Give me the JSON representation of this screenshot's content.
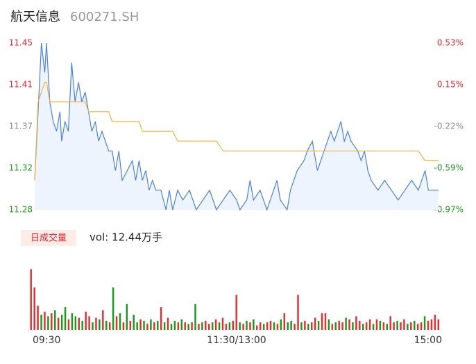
{
  "chart_data": [
    {
      "type": "line",
      "title": "航天信息",
      "subtitle": "600271.SH",
      "xlim": [
        0,
        240
      ],
      "x": [
        0,
        2,
        4,
        6,
        7,
        9,
        11,
        13,
        15,
        16,
        18,
        20,
        22,
        24,
        26,
        28,
        30,
        32,
        34,
        36,
        38,
        40,
        42,
        44,
        46,
        48,
        50,
        52,
        55,
        58,
        60,
        62,
        64,
        66,
        68,
        70,
        72,
        75,
        78,
        80,
        82,
        85,
        88,
        92,
        96,
        100,
        104,
        108,
        112,
        116,
        120,
        122,
        126,
        128,
        130,
        134,
        138,
        140,
        144,
        146,
        150,
        152,
        156,
        160,
        162,
        165,
        168,
        172,
        176,
        178,
        180,
        182,
        184,
        186,
        188,
        192,
        194,
        196,
        198,
        200,
        204,
        208,
        212,
        216,
        220,
        224,
        228,
        232,
        234,
        236,
        240
      ],
      "series": [
        {
          "color": "#4a80e8",
          "fill": "#eef4fd",
          "values": [
            11.31,
            11.38,
            11.45,
            11.42,
            11.45,
            11.39,
            11.37,
            11.36,
            11.38,
            11.35,
            11.37,
            11.36,
            11.43,
            11.39,
            11.41,
            11.39,
            11.4,
            11.38,
            11.36,
            11.37,
            11.35,
            11.36,
            11.35,
            11.34,
            11.34,
            11.32,
            11.34,
            11.31,
            11.32,
            11.33,
            11.31,
            11.33,
            11.31,
            11.32,
            11.3,
            11.31,
            11.3,
            11.3,
            11.28,
            11.3,
            11.28,
            11.3,
            11.29,
            11.3,
            11.28,
            11.29,
            11.3,
            11.28,
            11.29,
            11.3,
            11.29,
            11.28,
            11.29,
            11.31,
            11.29,
            11.3,
            11.28,
            11.29,
            11.31,
            11.29,
            11.28,
            11.3,
            11.32,
            11.33,
            11.34,
            11.35,
            11.32,
            11.34,
            11.36,
            11.35,
            11.36,
            11.37,
            11.35,
            11.36,
            11.35,
            11.34,
            11.33,
            11.34,
            11.32,
            11.31,
            11.3,
            11.31,
            11.3,
            11.29,
            11.3,
            11.31,
            11.3,
            11.32,
            11.3,
            11.3,
            11.3
          ]
        },
        {
          "color": "#f5b33a",
          "values": [
            11.31,
            11.39,
            11.4,
            11.41,
            11.41,
            11.39,
            11.39,
            11.39,
            11.39,
            11.39,
            11.39,
            11.39,
            11.39,
            11.39,
            11.39,
            11.39,
            11.39,
            11.38,
            11.38,
            11.38,
            11.38,
            11.38,
            11.38,
            11.38,
            11.37,
            11.37,
            11.37,
            11.37,
            11.37,
            11.37,
            11.37,
            11.37,
            11.36,
            11.36,
            11.36,
            11.36,
            11.36,
            11.36,
            11.36,
            11.36,
            11.36,
            11.35,
            11.35,
            11.35,
            11.35,
            11.35,
            11.35,
            11.35,
            11.34,
            11.34,
            11.34,
            11.34,
            11.34,
            11.34,
            11.34,
            11.34,
            11.34,
            11.34,
            11.34,
            11.34,
            11.34,
            11.34,
            11.34,
            11.34,
            11.34,
            11.34,
            11.34,
            11.34,
            11.34,
            11.34,
            11.34,
            11.34,
            11.34,
            11.34,
            11.34,
            11.34,
            11.34,
            11.34,
            11.34,
            11.34,
            11.34,
            11.34,
            11.34,
            11.34,
            11.34,
            11.34,
            11.34,
            11.33,
            11.33,
            11.33,
            11.33
          ]
        }
      ],
      "ylim": [
        11.28,
        11.45
      ],
      "yticks": [
        11.45,
        {
          "value": 11.4075,
          "label": "11.41"
        },
        {
          "value": 11.365,
          "label": "11.37"
        },
        {
          "value": 11.3225,
          "label": "11.32"
        },
        11.28
      ],
      "y2lim": [
        -0.97,
        0.53
      ],
      "y2ticks": [
        {
          "value": 0.53,
          "label": "0.53%"
        },
        {
          "value": 0.155,
          "label": "0.15%"
        },
        {
          "value": -0.22,
          "label": "-0.22%"
        },
        {
          "value": -0.595,
          "label": "-0.59%"
        },
        {
          "value": -0.97,
          "label": "-0.97%"
        }
      ],
      "tick_colors": [
        "#e8262b",
        "#e8262b",
        "#8c8c8c",
        "#1e9a1e",
        "#1e9a1e"
      ]
    },
    {
      "type": "bar",
      "button": "日成交量",
      "title": "vol: 12.44万手",
      "xlim": [
        0,
        240
      ],
      "xticks": [
        {
          "value": 0,
          "label": "09:30"
        },
        {
          "value": 120,
          "label": "11:30/13:00"
        },
        {
          "value": 240,
          "label": "15:00"
        }
      ],
      "ylim": [
        0,
        4200
      ],
      "values": [
        4000,
        2800,
        1600,
        1000,
        1200,
        900,
        1100,
        1300,
        800,
        1000,
        1500,
        700,
        1100,
        900,
        800,
        600,
        1200,
        900,
        500,
        800,
        700,
        1300,
        600,
        500,
        2800,
        900,
        1100,
        500,
        1700,
        600,
        1000,
        500,
        700,
        600,
        400,
        700,
        500,
        600,
        1500,
        500,
        800,
        400,
        600,
        500,
        700,
        500,
        400,
        500,
        1700,
        400,
        500,
        600,
        400,
        500,
        700,
        500,
        800,
        400,
        500,
        600,
        2300,
        500,
        400,
        600,
        500,
        700,
        300,
        500,
        400,
        500,
        600,
        500,
        400,
        700,
        1100,
        500,
        600,
        400,
        2300,
        500,
        600,
        400,
        500,
        800,
        600,
        1100,
        1100,
        700,
        400,
        500,
        600,
        500,
        800,
        700,
        500,
        900,
        600,
        400,
        500,
        700,
        400,
        700,
        600,
        500,
        400,
        900,
        500,
        600,
        500,
        700,
        400,
        500,
        600,
        400,
        500,
        900,
        600,
        700,
        1000,
        700
      ],
      "colors": [
        "#e82e2e",
        "#e82e2e",
        "#e82e2e",
        "#1a9a1a",
        "#e82e2e",
        "#1a9a1a",
        "#e82e2e",
        "#1a9a1a",
        "#e82e2e",
        "#1a9a1a",
        "#1a9a1a",
        "#e82e2e",
        "#1a9a1a",
        "#1a9a1a",
        "#e82e2e",
        "#1a9a1a",
        "#e82e2e",
        "#e82e2e",
        "#1a9a1a",
        "#e82e2e",
        "#1a9a1a",
        "#e82e2e",
        "#1a9a1a",
        "#e82e2e",
        "#1a9a1a",
        "#e82e2e",
        "#1a9a1a",
        "#e82e2e",
        "#1a9a1a",
        "#e82e2e",
        "#1a9a1a",
        "#1a9a1a",
        "#e82e2e",
        "#1a9a1a",
        "#e82e2e",
        "#1a9a1a",
        "#e82e2e",
        "#1a9a1a",
        "#e82e2e",
        "#1a9a1a",
        "#e82e2e",
        "#1a9a1a",
        "#1a9a1a",
        "#e82e2e",
        "#1a9a1a",
        "#e82e2e",
        "#1a9a1a",
        "#e82e2e",
        "#1a9a1a",
        "#e82e2e",
        "#1a9a1a",
        "#e82e2e",
        "#e82e2e",
        "#1a9a1a",
        "#e82e2e",
        "#1a9a1a",
        "#e82e2e",
        "#e82e2e",
        "#1a9a1a",
        "#e82e2e",
        "#e82e2e",
        "#1a9a1a",
        "#e82e2e",
        "#1a9a1a",
        "#e82e2e",
        "#1a9a1a",
        "#e82e2e",
        "#e82e2e",
        "#1a9a1a",
        "#e82e2e",
        "#e82e2e",
        "#1a9a1a",
        "#e82e2e",
        "#1a9a1a",
        "#e82e2e",
        "#1a9a1a",
        "#1a9a1a",
        "#e82e2e",
        "#e82e2e",
        "#1a9a1a",
        "#e82e2e",
        "#1a9a1a",
        "#e82e2e",
        "#e82e2e",
        "#1a9a1a",
        "#e82e2e",
        "#e82e2e",
        "#1a9a1a",
        "#e82e2e",
        "#1a9a1a",
        "#e82e2e",
        "#e82e2e",
        "#1a9a1a",
        "#e82e2e",
        "#1a9a1a",
        "#e82e2e",
        "#e82e2e",
        "#1a9a1a",
        "#e82e2e",
        "#e82e2e",
        "#1a9a1a",
        "#e82e2e",
        "#1a9a1a",
        "#e82e2e",
        "#1a9a1a",
        "#e82e2e",
        "#e82e2e",
        "#1a9a1a",
        "#e82e2e",
        "#e82e2e",
        "#1a9a1a",
        "#e82e2e",
        "#1a9a1a",
        "#e82e2e",
        "#e82e2e",
        "#1a9a1a",
        "#e82e2e",
        "#e82e2e",
        "#e82e2e",
        "#e82e2e"
      ]
    }
  ]
}
